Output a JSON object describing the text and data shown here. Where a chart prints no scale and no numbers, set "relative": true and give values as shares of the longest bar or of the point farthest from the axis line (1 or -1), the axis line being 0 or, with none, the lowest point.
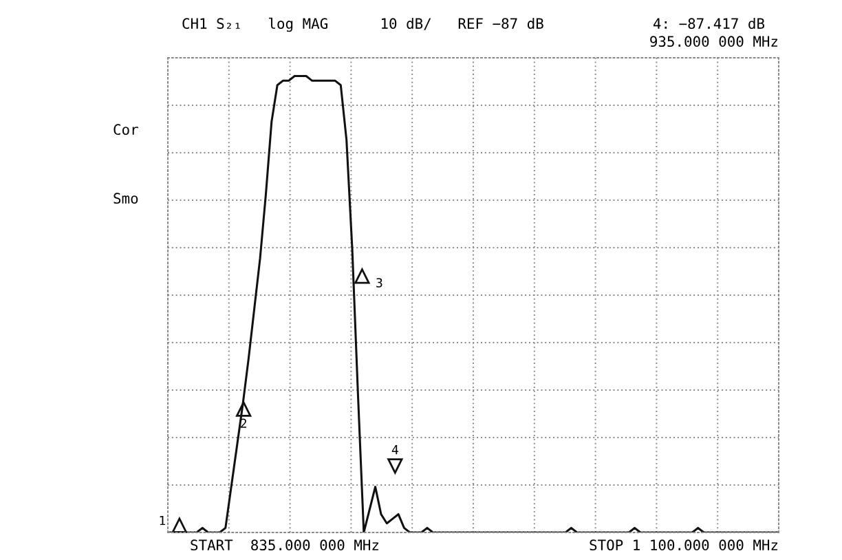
{
  "chart_data": {
    "type": "line",
    "title": "CH1 S₂₁   log MAG      10 dB/   REF −87 dB",
    "relative": true,
    "categories": [
      null,
      null,
      null,
      null,
      null,
      null,
      null,
      null,
      null,
      null,
      null,
      null,
      null,
      null,
      null,
      null,
      null,
      null,
      null,
      null,
      null,
      null,
      null,
      null,
      null,
      null,
      null,
      null,
      null,
      null,
      null,
      null,
      null,
      null,
      null,
      null,
      null,
      null,
      null,
      null,
      null,
      null,
      null,
      null,
      null,
      null,
      null,
      null,
      null,
      null,
      null,
      null,
      null,
      null,
      null,
      null,
      null,
      null,
      null,
      null,
      null,
      null,
      null,
      null,
      null,
      null,
      null,
      null,
      null,
      null,
      null,
      null,
      null,
      null,
      null,
      null,
      null,
      null,
      null,
      null,
      null,
      null,
      null,
      null,
      null,
      null,
      null,
      null,
      null,
      null,
      null,
      null,
      null,
      null,
      null,
      null,
      null,
      null,
      null,
      null,
      null,
      null,
      null,
      null,
      null,
      null,
      null
    ],
    "series": [
      {
        "color": "#111111",
        "values": [
          0,
          0,
          0,
          0,
          0,
          0,
          0.01,
          0,
          0,
          0,
          0.01,
          0.1,
          0.19,
          0.28,
          0.38,
          0.49,
          0.6,
          0.74,
          0.9,
          0.98,
          0.99,
          0.99,
          1,
          1,
          1,
          0.99,
          0.99,
          0.99,
          0.99,
          0.99,
          0.98,
          0.86,
          0.62,
          0.3,
          0,
          0.05,
          0.1,
          0.04,
          0.02,
          0.03,
          0.04,
          0.01,
          0,
          0,
          0,
          0.01,
          0,
          0,
          0,
          0,
          0,
          0,
          0,
          0,
          0,
          0,
          0,
          0,
          0,
          0,
          0,
          0,
          0,
          0,
          0,
          0,
          0,
          0,
          0,
          0,
          0.01,
          0,
          0,
          0,
          0,
          0,
          0,
          0,
          0,
          0,
          0,
          0.01,
          0,
          0,
          0,
          0,
          0,
          0,
          0,
          0,
          0,
          0,
          0.01,
          0,
          0,
          0,
          0,
          0,
          0,
          0,
          0,
          0,
          0,
          0,
          0,
          0,
          0
        ]
      }
    ],
    "grid": true,
    "line_style": "solid",
    "marker": "none",
    "annotations": [
      "4: −87.417 dB",
      "935.000 000 MHz",
      "Cor",
      "Smo",
      "START  835.000 000 MHz",
      "STOP 1 100.000 000 MHz",
      "1",
      "2",
      "3",
      "4"
    ]
  }
}
